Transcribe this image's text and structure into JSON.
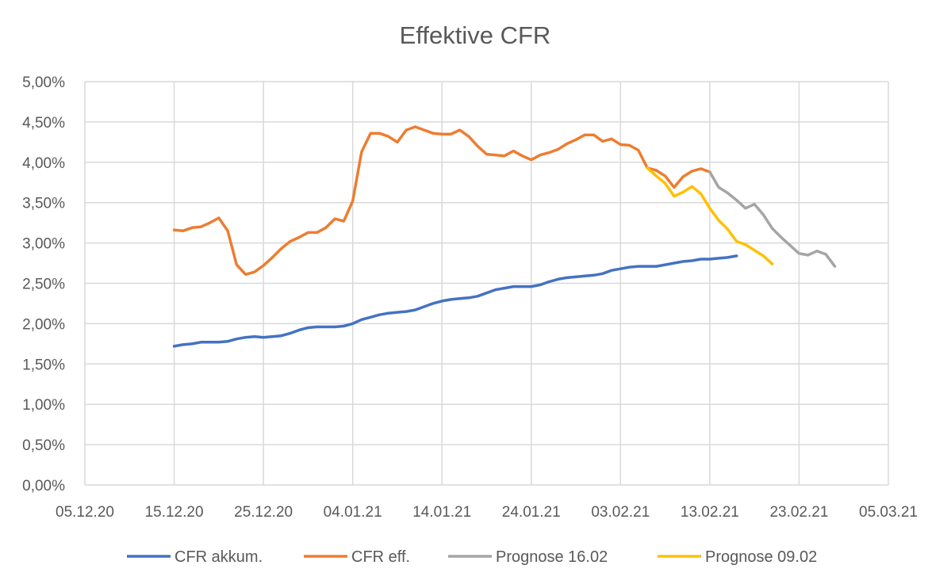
{
  "chart_data": {
    "type": "line",
    "title": "Effektive CFR",
    "xlabel": "",
    "ylabel": "",
    "x_unit": "days since 05.12.20",
    "xlim": [
      0,
      90
    ],
    "ylim": [
      0,
      5
    ],
    "grid": true,
    "legend_position": "bottom",
    "x_ticks": [
      {
        "day": 0,
        "label": "05.12.20"
      },
      {
        "day": 10,
        "label": "15.12.20"
      },
      {
        "day": 20,
        "label": "25.12.20"
      },
      {
        "day": 30,
        "label": "04.01.21"
      },
      {
        "day": 40,
        "label": "14.01.21"
      },
      {
        "day": 50,
        "label": "24.01.21"
      },
      {
        "day": 60,
        "label": "03.02.21"
      },
      {
        "day": 70,
        "label": "13.02.21"
      },
      {
        "day": 80,
        "label": "23.02.21"
      },
      {
        "day": 90,
        "label": "05.03.21"
      }
    ],
    "y_ticks": [
      {
        "value": 0,
        "label": "0,00%"
      },
      {
        "value": 0.5,
        "label": "0,50%"
      },
      {
        "value": 1,
        "label": "1,00%"
      },
      {
        "value": 1.5,
        "label": "1,50%"
      },
      {
        "value": 2,
        "label": "2,00%"
      },
      {
        "value": 2.5,
        "label": "2,50%"
      },
      {
        "value": 3,
        "label": "3,00%"
      },
      {
        "value": 3.5,
        "label": "3,50%"
      },
      {
        "value": 4,
        "label": "4,00%"
      },
      {
        "value": 4.5,
        "label": "4,50%"
      },
      {
        "value": 5,
        "label": "5,00%"
      }
    ],
    "series": [
      {
        "name": "CFR akkum.",
        "color": "#4472C4",
        "x_start": 10,
        "values": [
          1.72,
          1.74,
          1.75,
          1.77,
          1.77,
          1.77,
          1.78,
          1.81,
          1.83,
          1.84,
          1.83,
          1.84,
          1.85,
          1.88,
          1.92,
          1.95,
          1.96,
          1.96,
          1.96,
          1.97,
          2.0,
          2.05,
          2.08,
          2.11,
          2.13,
          2.14,
          2.15,
          2.17,
          2.21,
          2.25,
          2.28,
          2.3,
          2.31,
          2.32,
          2.34,
          2.38,
          2.42,
          2.44,
          2.46,
          2.46,
          2.46,
          2.48,
          2.52,
          2.55,
          2.57,
          2.58,
          2.59,
          2.6,
          2.62,
          2.66,
          2.68,
          2.7,
          2.71,
          2.71,
          2.71,
          2.73,
          2.75,
          2.77,
          2.78,
          2.8,
          2.8,
          2.81,
          2.82,
          2.84
        ]
      },
      {
        "name": "CFR eff.",
        "color": "#ED7D31",
        "x_start": 10,
        "values": [
          3.16,
          3.15,
          3.19,
          3.2,
          3.25,
          3.31,
          3.15,
          2.73,
          2.61,
          2.64,
          2.72,
          2.82,
          2.93,
          3.02,
          3.07,
          3.13,
          3.13,
          3.19,
          3.3,
          3.27,
          3.52,
          4.13,
          4.36,
          4.36,
          4.32,
          4.25,
          4.4,
          4.44,
          4.4,
          4.36,
          4.35,
          4.35,
          4.4,
          4.32,
          4.2,
          4.1,
          4.09,
          4.08,
          4.14,
          4.08,
          4.03,
          4.09,
          4.12,
          4.16,
          4.23,
          4.28,
          4.34,
          4.34,
          4.26,
          4.29,
          4.22,
          4.21,
          4.15,
          3.93,
          3.9,
          3.83,
          3.69,
          3.82,
          3.89,
          3.92,
          3.88
        ]
      },
      {
        "name": "Prognose 16.02",
        "color": "#A5A5A5",
        "x_start": 70,
        "values": [
          3.88,
          3.69,
          3.62,
          3.53,
          3.43,
          3.48,
          3.35,
          3.18,
          3.07,
          2.97,
          2.87,
          2.85,
          2.9,
          2.86,
          2.71
        ]
      },
      {
        "name": "Prognose 09.02",
        "color": "#FFC000",
        "x_start": 63,
        "values": [
          3.93,
          3.83,
          3.74,
          3.58,
          3.63,
          3.7,
          3.61,
          3.43,
          3.28,
          3.17,
          3.02,
          2.98,
          2.91,
          2.84,
          2.74
        ]
      }
    ]
  }
}
